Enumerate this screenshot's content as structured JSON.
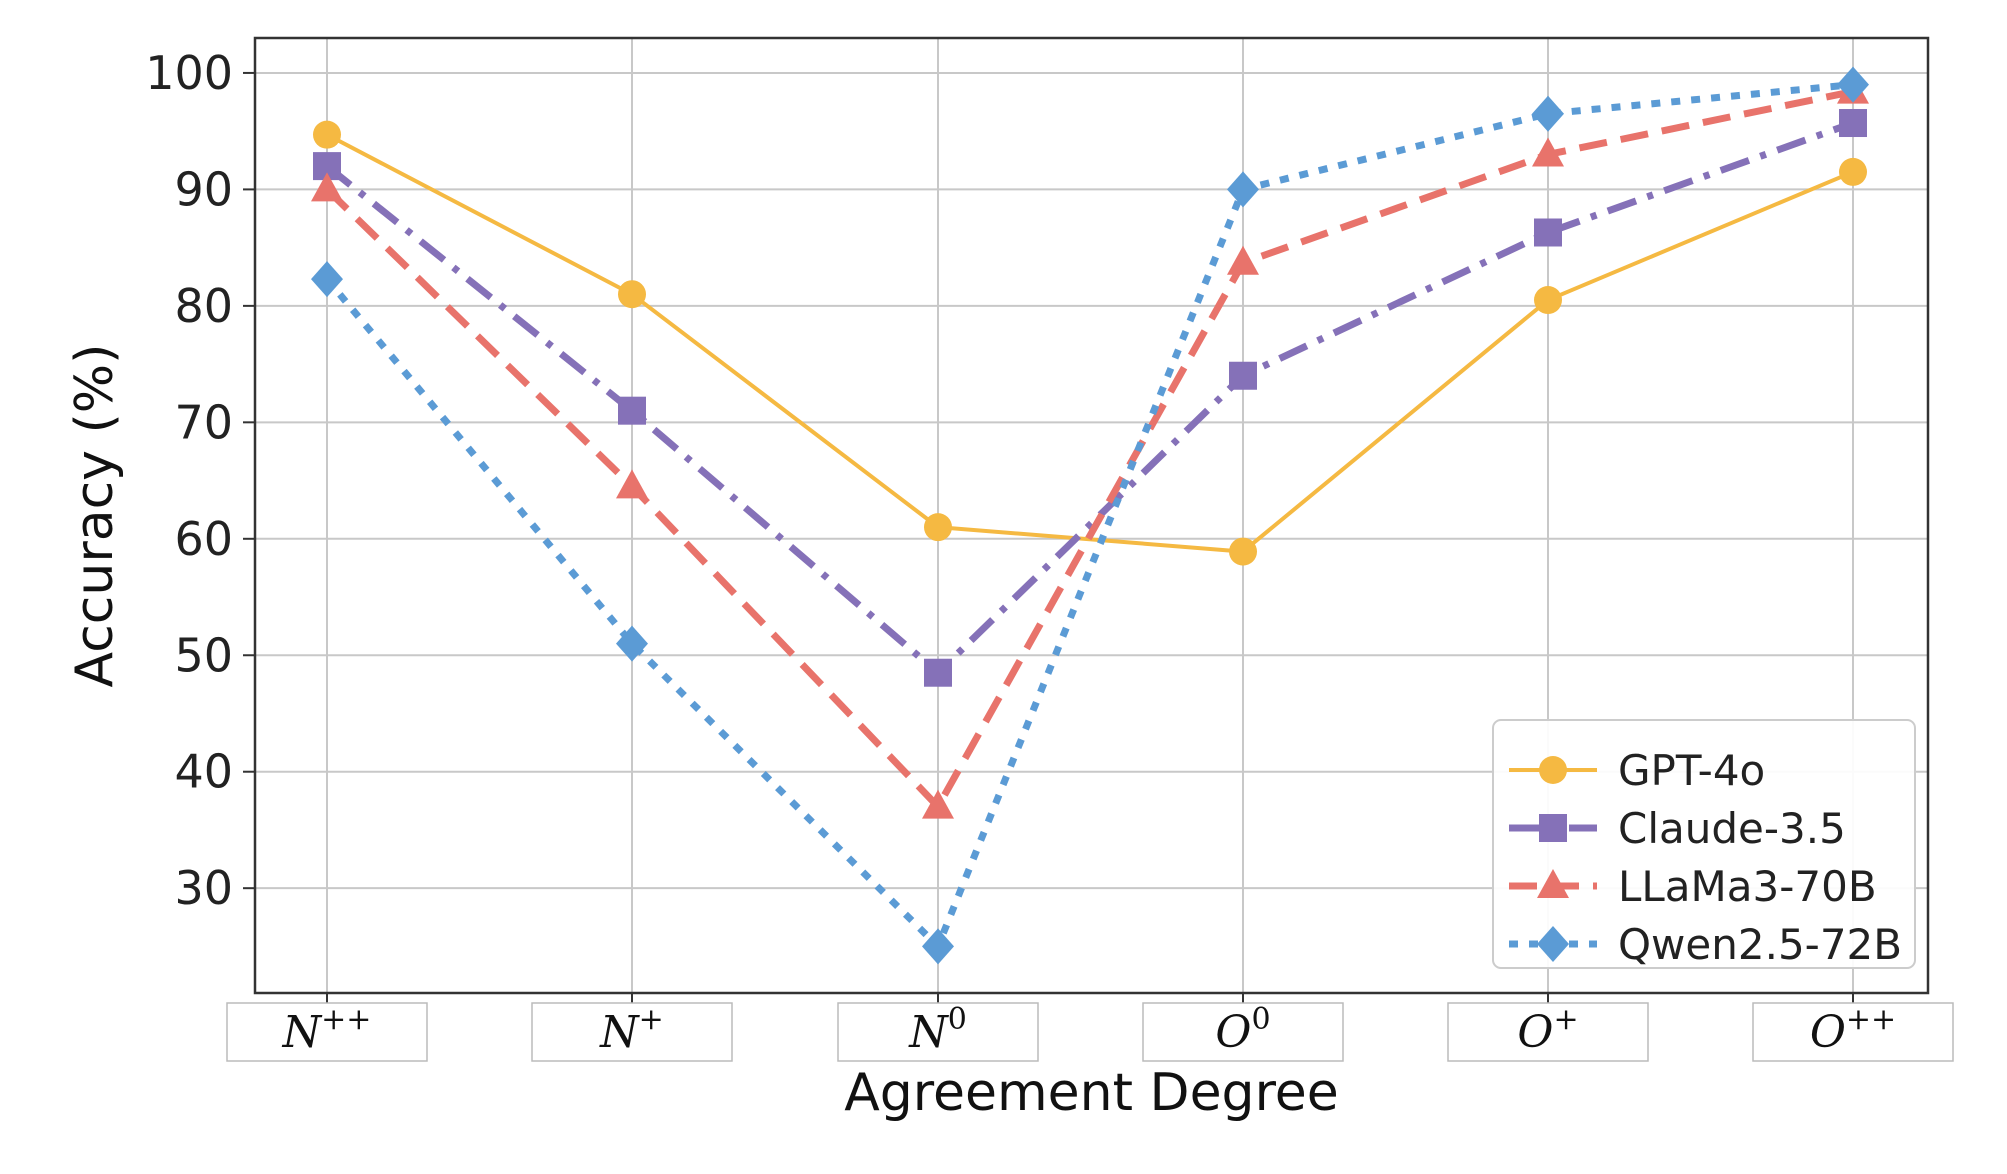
{
  "chart_data": {
    "type": "line",
    "title": "",
    "xlabel": "Agreement Degree",
    "ylabel": "Accuracy (%)",
    "ylim": [
      21,
      103
    ],
    "yticks": [
      30,
      40,
      50,
      60,
      70,
      80,
      90,
      100
    ],
    "grid": true,
    "legend_position": "bottom-right",
    "categories": [
      {
        "base": "N",
        "sup": "++"
      },
      {
        "base": "N",
        "sup": "+"
      },
      {
        "base": "N",
        "sup": "0"
      },
      {
        "base": "O",
        "sup": "0"
      },
      {
        "base": "O",
        "sup": "+"
      },
      {
        "base": "O",
        "sup": "++"
      }
    ],
    "series": [
      {
        "name": "GPT-4o",
        "color": "#f5b942",
        "marker": "circle",
        "dash": "solid",
        "values": [
          94.7,
          81.0,
          61.0,
          58.9,
          80.5,
          91.5
        ]
      },
      {
        "name": "Claude-3.5",
        "color": "#8571b8",
        "marker": "square",
        "dash": "dashdot",
        "values": [
          92.0,
          71.0,
          48.5,
          74.0,
          86.3,
          95.7
        ]
      },
      {
        "name": "LLaMa3-70B",
        "color": "#e8736b",
        "marker": "triangle",
        "dash": "dashed",
        "values": [
          90.0,
          64.5,
          37.0,
          83.7,
          93.0,
          98.4
        ]
      },
      {
        "name": "Qwen2.5-72B",
        "color": "#5b9bd5",
        "marker": "diamond",
        "dash": "dotted",
        "values": [
          82.3,
          51.0,
          25.0,
          90.0,
          96.5,
          99.0
        ]
      }
    ]
  }
}
